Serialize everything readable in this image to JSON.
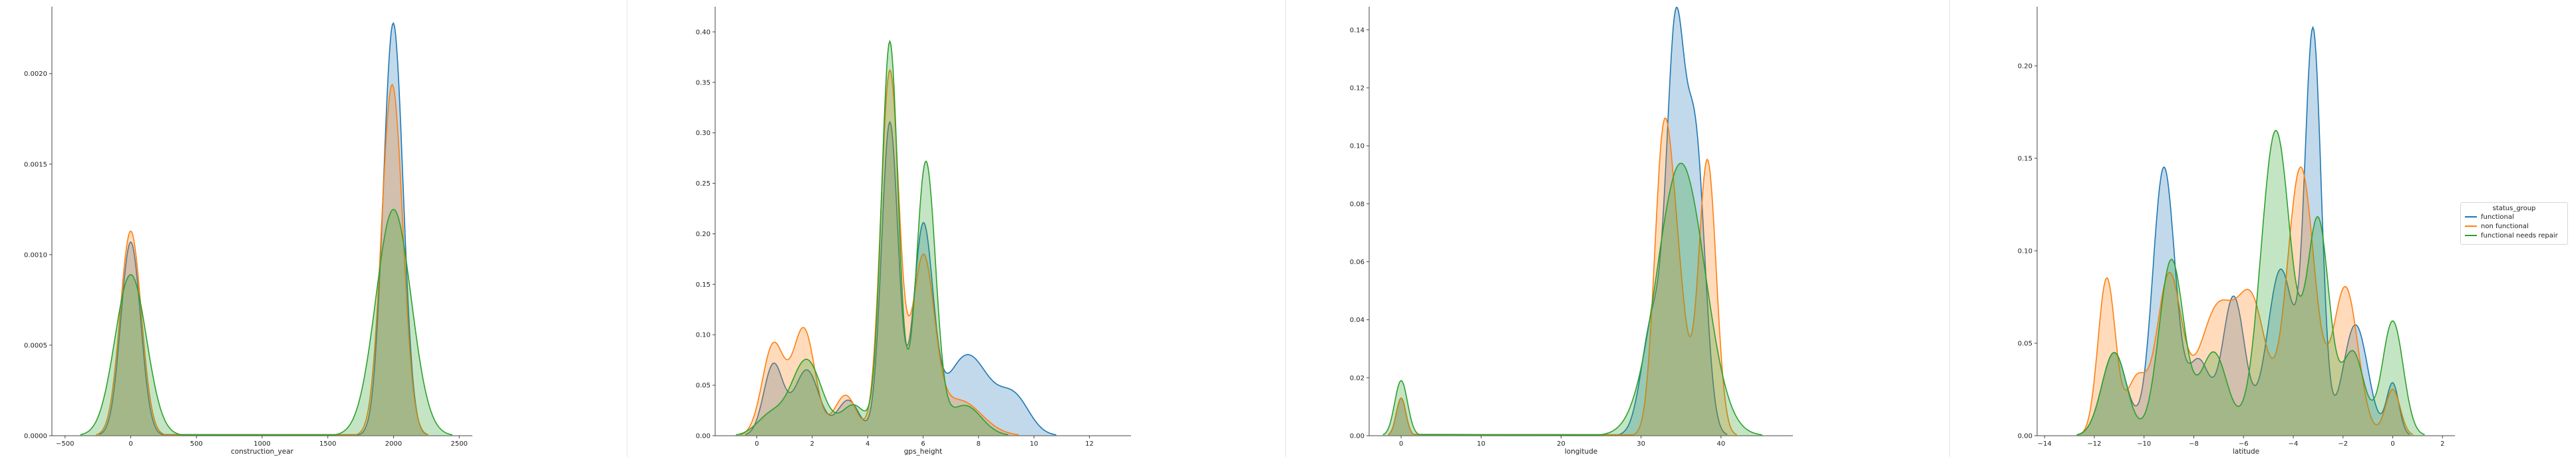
{
  "chart_data": [
    {
      "type": "area",
      "xlabel": "construction_year",
      "xlim": [
        -600,
        2600
      ],
      "ylim": [
        0,
        0.00237
      ],
      "xticks": [
        -500,
        0,
        500,
        1000,
        1500,
        2000,
        2500
      ],
      "yticks": [
        0.0,
        0.0005,
        0.001,
        0.0015,
        0.002
      ],
      "ytick_labels": [
        "0.0000",
        "0.0005",
        "0.0010",
        "0.0015",
        "0.0020"
      ],
      "series": [
        {
          "name": "functional",
          "peaks": [
            [
              0,
              0.00107,
              75
            ],
            [
              1998,
              0.00228,
              75
            ]
          ]
        },
        {
          "name": "non functional",
          "peaks": [
            [
              0,
              0.00113,
              80
            ],
            [
              1990,
              0.00194,
              80
            ]
          ]
        },
        {
          "name": "functional needs repair",
          "peaks": [
            [
              0,
              0.00089,
              120
            ],
            [
              2000,
              0.00125,
              135
            ]
          ]
        }
      ]
    },
    {
      "type": "area",
      "xlabel": "gps_height",
      "xlim": [
        -1.5,
        13.5
      ],
      "ylim": [
        0,
        0.425
      ],
      "xticks": [
        0,
        2,
        4,
        6,
        8,
        10,
        12
      ],
      "yticks": [
        0.0,
        0.05,
        0.1,
        0.15,
        0.2,
        0.25,
        0.3,
        0.35,
        0.4
      ],
      "ytick_labels": [
        "0.00",
        "0.05",
        "0.10",
        "0.15",
        "0.20",
        "0.25",
        "0.30",
        "0.35",
        "0.40"
      ],
      "series": [
        {
          "name": "functional",
          "peaks": [
            [
              0.6,
              0.07,
              0.35
            ],
            [
              1.8,
              0.065,
              0.45
            ],
            [
              3.3,
              0.035,
              0.4
            ],
            [
              4.8,
              0.31,
              0.3
            ],
            [
              6.0,
              0.2,
              0.35
            ],
            [
              7.6,
              0.08,
              0.8
            ],
            [
              9.3,
              0.035,
              0.55
            ]
          ]
        },
        {
          "name": "non functional",
          "peaks": [
            [
              0.6,
              0.09,
              0.4
            ],
            [
              1.7,
              0.105,
              0.4
            ],
            [
              3.2,
              0.04,
              0.4
            ],
            [
              4.8,
              0.36,
              0.33
            ],
            [
              6.0,
              0.17,
              0.4
            ],
            [
              7.3,
              0.035,
              0.8
            ]
          ]
        },
        {
          "name": "functional needs repair",
          "peaks": [
            [
              0.5,
              0.02,
              0.5
            ],
            [
              1.8,
              0.075,
              0.55
            ],
            [
              3.5,
              0.03,
              0.45
            ],
            [
              4.8,
              0.39,
              0.3
            ],
            [
              6.1,
              0.27,
              0.35
            ],
            [
              7.5,
              0.03,
              0.6
            ]
          ]
        }
      ]
    },
    {
      "type": "area",
      "xlabel": "longitude",
      "xlim": [
        -4,
        49
      ],
      "ylim": [
        0,
        0.148
      ],
      "xticks": [
        0,
        10,
        20,
        30,
        40
      ],
      "yticks": [
        0.0,
        0.02,
        0.04,
        0.06,
        0.08,
        0.1,
        0.12,
        0.14
      ],
      "ytick_labels": [
        "0.00",
        "0.02",
        "0.04",
        "0.06",
        "0.08",
        "0.10",
        "0.12",
        "0.14"
      ],
      "series": [
        {
          "name": "functional",
          "peaks": [
            [
              0,
              0.013,
              0.6
            ],
            [
              31.5,
              0.04,
              1.4
            ],
            [
              34.3,
              0.13,
              1.1
            ],
            [
              36.8,
              0.1,
              1.2
            ]
          ]
        },
        {
          "name": "non functional",
          "peaks": [
            [
              0,
              0.013,
              0.6
            ],
            [
              32.7,
              0.09,
              1.1
            ],
            [
              34.5,
              0.05,
              1.2
            ],
            [
              38.3,
              0.095,
              1.1
            ]
          ]
        },
        {
          "name": "functional needs repair",
          "peaks": [
            [
              0,
              0.019,
              0.8
            ],
            [
              35.0,
              0.094,
              3.0
            ]
          ]
        }
      ]
    },
    {
      "type": "area",
      "xlabel": "latitude",
      "xlim": [
        -14.3,
        2.5
      ],
      "ylim": [
        0,
        0.232
      ],
      "xticks": [
        -14,
        -12,
        -10,
        -8,
        -6,
        -4,
        -2,
        0,
        2
      ],
      "yticks": [
        0.0,
        0.05,
        0.1,
        0.15,
        0.2
      ],
      "ytick_labels": [
        "0.00",
        "0.05",
        "0.10",
        "0.15",
        "0.20"
      ],
      "legend_title": "status_group",
      "legend_position": "right",
      "series": [
        {
          "name": "functional",
          "peaks": [
            [
              -11.2,
              0.045,
              0.5
            ],
            [
              -9.2,
              0.145,
              0.45
            ],
            [
              -7.8,
              0.04,
              0.45
            ],
            [
              -6.4,
              0.075,
              0.45
            ],
            [
              -4.5,
              0.09,
              0.55
            ],
            [
              -3.2,
              0.215,
              0.33
            ],
            [
              -1.5,
              0.06,
              0.5
            ],
            [
              0.0,
              0.028,
              0.25
            ]
          ]
        },
        {
          "name": "non functional",
          "peaks": [
            [
              -11.5,
              0.085,
              0.35
            ],
            [
              -10.3,
              0.03,
              0.4
            ],
            [
              -9.0,
              0.085,
              0.5
            ],
            [
              -7.0,
              0.07,
              0.8
            ],
            [
              -5.6,
              0.06,
              0.55
            ],
            [
              -3.7,
              0.145,
              0.55
            ],
            [
              -1.9,
              0.08,
              0.5
            ],
            [
              0.0,
              0.025,
              0.3
            ]
          ]
        },
        {
          "name": "functional needs repair",
          "peaks": [
            [
              -11.2,
              0.045,
              0.5
            ],
            [
              -8.9,
              0.095,
              0.5
            ],
            [
              -7.2,
              0.045,
              0.55
            ],
            [
              -4.7,
              0.165,
              0.6
            ],
            [
              -3.0,
              0.115,
              0.45
            ],
            [
              -1.6,
              0.045,
              0.45
            ],
            [
              0.0,
              0.062,
              0.42
            ]
          ]
        }
      ]
    }
  ],
  "colors": {
    "functional": "#1f77b4",
    "non functional": "#ff7f0e",
    "functional needs repair": "#2ca02c"
  }
}
